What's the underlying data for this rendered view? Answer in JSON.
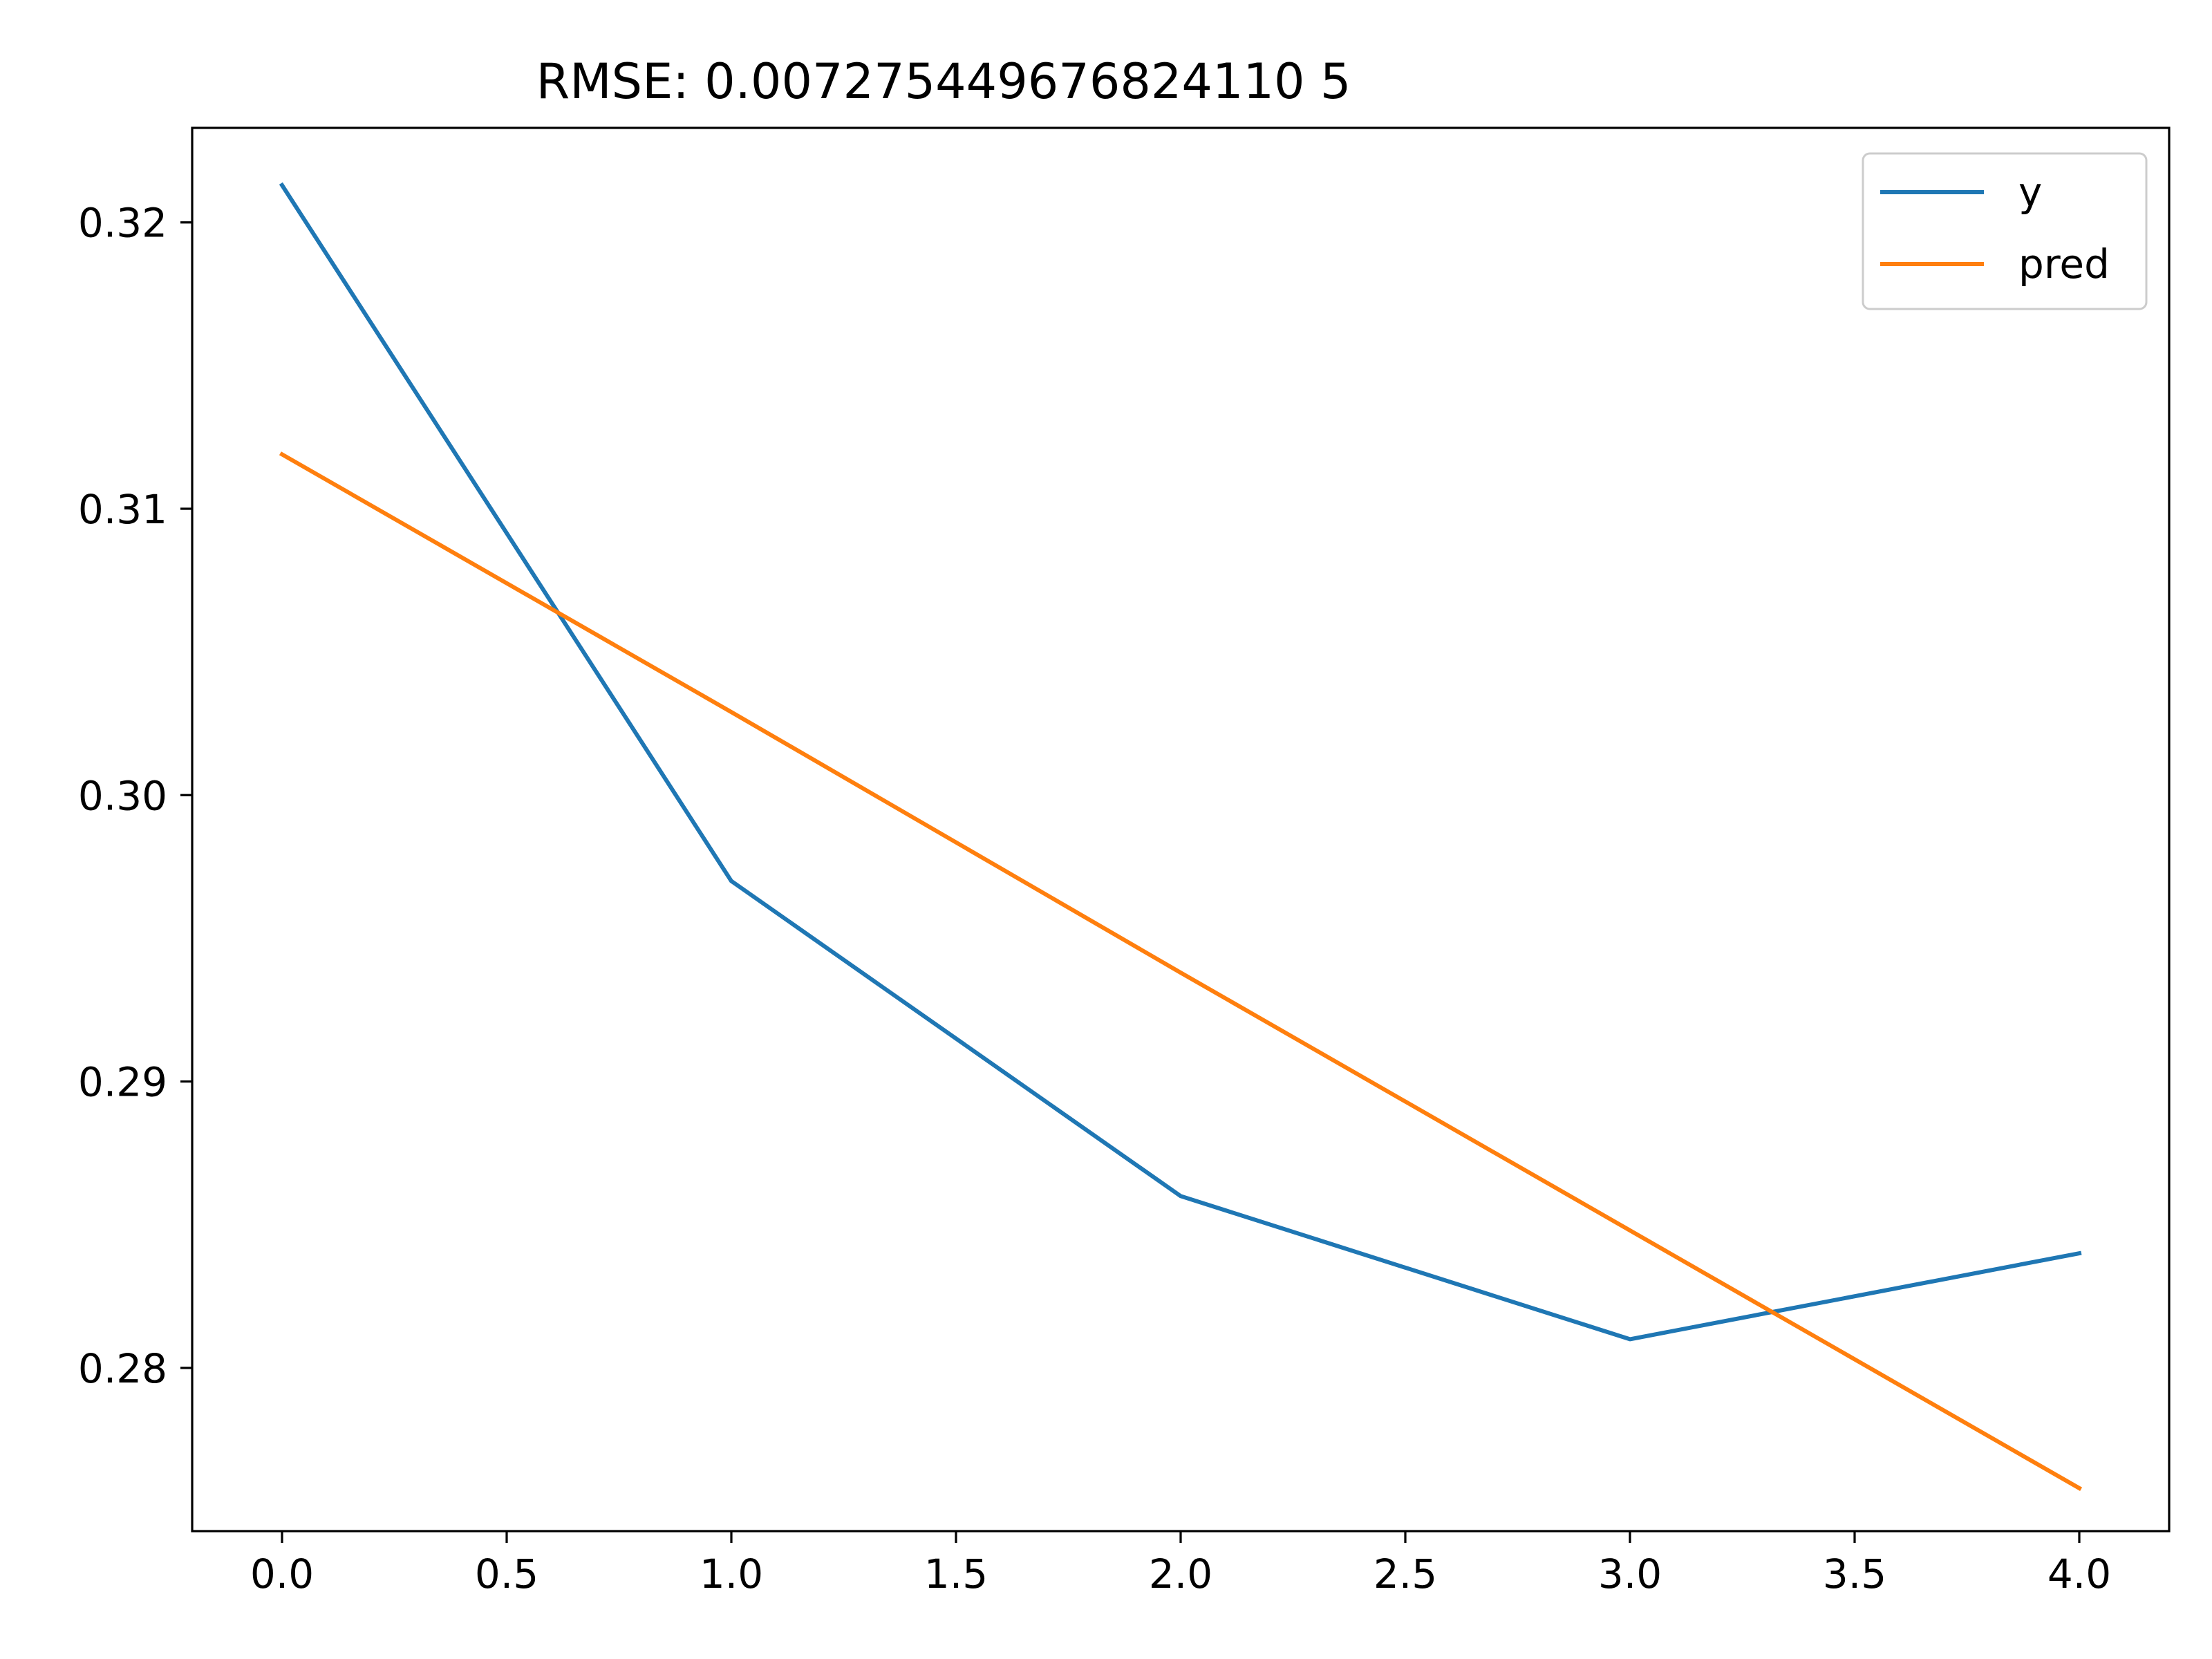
{
  "chart_data": {
    "type": "line",
    "title": "RMSE: 0.007275449676824110 5",
    "xlabel": "",
    "ylabel": "",
    "xlim": [
      -0.2,
      4.2
    ],
    "ylim": [
      0.2743,
      0.3233
    ],
    "x_ticks": [
      0.0,
      0.5,
      1.0,
      1.5,
      2.0,
      2.5,
      3.0,
      3.5,
      4.0
    ],
    "x_tick_labels": [
      "0.0",
      "0.5",
      "1.0",
      "1.5",
      "2.0",
      "2.5",
      "3.0",
      "3.5",
      "4.0"
    ],
    "y_ticks": [
      0.28,
      0.29,
      0.3,
      0.31,
      0.32
    ],
    "y_tick_labels": [
      "0.28",
      "0.29",
      "0.30",
      "0.31",
      "0.32"
    ],
    "grid": false,
    "legend_position": "top-right",
    "x": [
      0,
      1,
      2,
      3,
      4
    ],
    "series": [
      {
        "name": "y",
        "color": "#1f77b4",
        "values": [
          0.3213,
          0.297,
          0.286,
          0.281,
          0.284
        ]
      },
      {
        "name": "pred",
        "color": "#ff7f0e",
        "values": [
          0.3119,
          0.3029,
          0.2938,
          0.2848,
          0.2758
        ]
      }
    ]
  }
}
